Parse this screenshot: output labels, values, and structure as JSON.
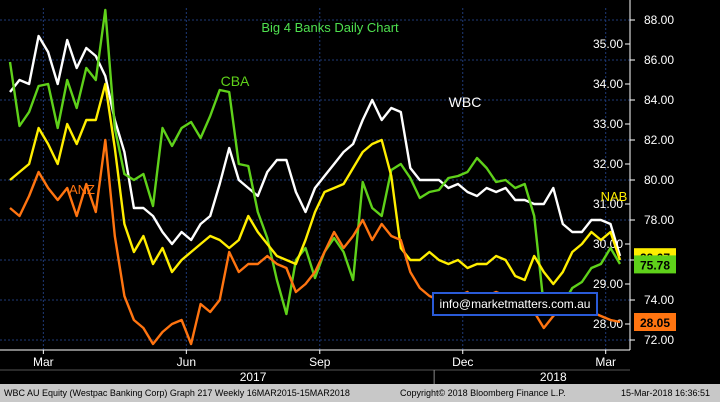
{
  "colors": {
    "background": "#000000",
    "axis": "#ffffff",
    "grid": "#1e3a78",
    "wbc": "#ffffff",
    "cba": "#5fd11a",
    "nab": "#ffee00",
    "anz": "#ff7410",
    "title": "#4fe04f",
    "watermark_border": "#2a5bd8",
    "watermark_text": "#ffffff",
    "footer_bg": "#c8c8c8"
  },
  "chart_data": {
    "type": "line",
    "title": "Big 4 Banks Daily Chart",
    "x": [
      0,
      1,
      2,
      3,
      4,
      5,
      6,
      7,
      8,
      9,
      10,
      11,
      12,
      13,
      14,
      15,
      16,
      17,
      18,
      19,
      20,
      21,
      22,
      23,
      24,
      25,
      26,
      27,
      28,
      29,
      30,
      31,
      32,
      33,
      34,
      35,
      36,
      37,
      38,
      39,
      40,
      41,
      42,
      43,
      44,
      45,
      46,
      47,
      48,
      49,
      50,
      51,
      52,
      53,
      54,
      55,
      56,
      57,
      58,
      59,
      60,
      61,
      62,
      63,
      64
    ],
    "x_tick_labels": [
      {
        "x": 3.5,
        "label": "Mar"
      },
      {
        "x": 18.5,
        "label": "Jun"
      },
      {
        "x": 32.5,
        "label": "Sep"
      },
      {
        "x": 47.5,
        "label": "Dec"
      },
      {
        "x": 62.5,
        "label": "Mar"
      }
    ],
    "year_labels": [
      {
        "x": 25.5,
        "label": "2017"
      },
      {
        "x": 57,
        "label": "2018"
      }
    ],
    "left_axis": {
      "ylim": [
        27.35,
        35.9
      ],
      "ticks": [
        35.0,
        34.0,
        33.0,
        32.0,
        31.0,
        30.0,
        29.0,
        28.0
      ]
    },
    "right_axis": {
      "ylim": [
        71.5,
        88.6
      ],
      "ticks": [
        88.0,
        86.0,
        84.0,
        82.0,
        80.0,
        78.0,
        76.0,
        74.0,
        72.0
      ]
    },
    "series": [
      {
        "name": "WBC",
        "axis": "left",
        "color_key": "wbc",
        "values": [
          33.8,
          34.1,
          34.0,
          35.2,
          34.8,
          34.0,
          35.1,
          34.4,
          34.9,
          34.7,
          34.2,
          33.1,
          32.3,
          30.9,
          30.9,
          30.7,
          30.3,
          30.0,
          30.3,
          30.1,
          30.5,
          30.7,
          31.5,
          32.4,
          31.6,
          31.4,
          31.2,
          31.8,
          32.1,
          32.1,
          31.3,
          30.8,
          31.4,
          31.7,
          32.0,
          32.3,
          32.5,
          33.1,
          33.6,
          33.1,
          33.4,
          33.3,
          31.9,
          31.6,
          31.6,
          31.6,
          31.4,
          31.5,
          31.3,
          31.2,
          31.4,
          31.3,
          31.4,
          31.1,
          31.1,
          31.0,
          31.0,
          31.4,
          30.5,
          30.3,
          30.3,
          30.6,
          30.6,
          30.5,
          29.7
        ],
        "last_label": "29.67"
      },
      {
        "name": "CBA",
        "axis": "right",
        "color_key": "cba",
        "values": [
          85.9,
          82.7,
          83.4,
          84.7,
          84.8,
          82.6,
          85.0,
          83.6,
          85.6,
          85.0,
          88.5,
          82.6,
          80.3,
          80.0,
          80.3,
          78.7,
          82.6,
          81.7,
          82.6,
          82.9,
          82.1,
          83.2,
          84.5,
          84.4,
          80.8,
          80.7,
          78.4,
          77.1,
          75.0,
          73.3,
          76.0,
          76.6,
          75.1,
          76.4,
          77.1,
          76.4,
          75.0,
          79.9,
          78.6,
          78.2,
          80.5,
          80.8,
          80.1,
          79.1,
          79.4,
          79.5,
          80.1,
          80.2,
          80.4,
          81.1,
          80.6,
          79.9,
          80.0,
          79.6,
          79.8,
          78.2,
          73.7,
          74.0,
          73.8,
          74.6,
          74.9,
          75.6,
          75.8,
          76.6,
          75.8
        ],
        "last_label": "75.78"
      },
      {
        "name": "NAB",
        "axis": "left",
        "color_key": "nab",
        "values": [
          31.6,
          31.8,
          32.0,
          32.9,
          32.5,
          32.0,
          33.0,
          32.5,
          33.1,
          33.1,
          34.0,
          32.4,
          30.5,
          29.8,
          30.2,
          29.5,
          29.9,
          29.3,
          29.6,
          29.8,
          30.0,
          30.2,
          30.1,
          29.9,
          30.1,
          30.7,
          30.3,
          30.0,
          29.7,
          29.6,
          29.5,
          30.1,
          30.8,
          31.3,
          31.4,
          31.5,
          31.9,
          32.3,
          32.5,
          32.6,
          31.7,
          29.9,
          29.6,
          29.6,
          29.8,
          29.6,
          29.5,
          29.6,
          29.4,
          29.5,
          29.5,
          29.7,
          29.6,
          29.2,
          29.1,
          29.7,
          29.3,
          29.0,
          29.3,
          29.8,
          30.0,
          30.3,
          30.1,
          30.3,
          29.6
        ],
        "last_label": "NAB"
      },
      {
        "name": "ANZ",
        "axis": "left",
        "color_key": "anz",
        "values": [
          30.9,
          30.7,
          31.2,
          31.8,
          31.4,
          31.1,
          31.4,
          30.7,
          31.5,
          30.8,
          32.6,
          30.2,
          28.7,
          28.1,
          27.9,
          27.5,
          27.8,
          28.0,
          28.1,
          27.5,
          28.5,
          28.3,
          28.6,
          29.8,
          29.3,
          29.5,
          29.5,
          29.7,
          29.5,
          29.4,
          28.8,
          29.0,
          29.3,
          29.8,
          30.3,
          29.9,
          30.2,
          30.6,
          30.1,
          30.5,
          30.2,
          30.1,
          29.3,
          28.9,
          28.7,
          28.6,
          28.5,
          28.7,
          28.8,
          28.5,
          28.7,
          28.8,
          28.7,
          28.5,
          28.6,
          28.3,
          27.9,
          28.2,
          28.4,
          28.6,
          28.5,
          28.3,
          28.2,
          28.1,
          28.05
        ],
        "last_label": "28.05"
      }
    ]
  },
  "series_labels": {
    "wbc": "WBC",
    "cba": "CBA",
    "nab": "NAB",
    "anz": "ANZ"
  },
  "last_value_tags": {
    "wbc": "29.67",
    "cba": "75.78",
    "anz": "28.05"
  },
  "watermark": "info@marketmatters.com.au",
  "footer": {
    "left": "WBC AU Equity (Westpac Banking Corp) Graph 217  Weekly 16MAR2015-15MAR2018",
    "center": "Copyright© 2018 Bloomberg Finance L.P.",
    "right": "15-Mar-2018 16:36:51"
  }
}
